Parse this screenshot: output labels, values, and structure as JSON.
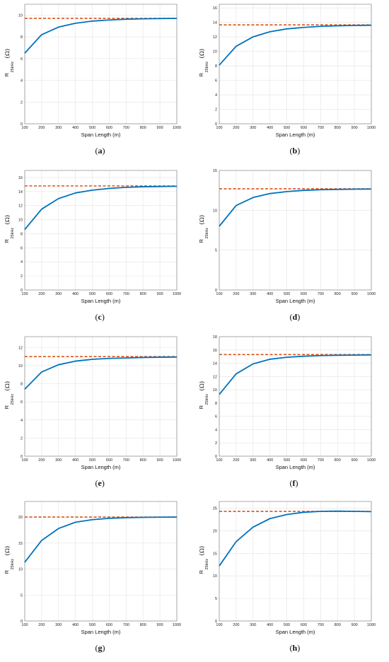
{
  "y_label": {
    "main": "R",
    "sub": "25kHz",
    "unit": "(Ω)"
  },
  "colors": {
    "series": "#0072BD",
    "asymptote": "#D95319",
    "grid": "#e3e3e3",
    "axis": "#777777"
  },
  "chart_data": [
    {
      "id": "a",
      "caption": "a",
      "type": "line",
      "xlabel": "Span Length (m)",
      "ylabel": "R 25kHz (Ω)",
      "xlim": [
        100,
        1000
      ],
      "ylim": [
        0,
        11
      ],
      "x_ticks": [
        100,
        200,
        300,
        400,
        500,
        600,
        700,
        800,
        900,
        1000
      ],
      "y_ticks": [
        0,
        2,
        4,
        6,
        8,
        10
      ],
      "x": [
        100,
        200,
        300,
        400,
        500,
        600,
        700,
        800,
        900,
        1000
      ],
      "values": [
        6.5,
        8.2,
        8.9,
        9.25,
        9.45,
        9.55,
        9.62,
        9.66,
        9.68,
        9.7
      ],
      "asymptote": 9.7
    },
    {
      "id": "b",
      "caption": "b",
      "type": "line",
      "xlabel": "Span Length (m)",
      "ylabel": "R 25kHz (Ω)",
      "xlim": [
        100,
        1000
      ],
      "ylim": [
        0,
        16.5
      ],
      "x_ticks": [
        100,
        200,
        300,
        400,
        500,
        600,
        700,
        800,
        900,
        1000
      ],
      "y_ticks": [
        0,
        2,
        4,
        6,
        8,
        10,
        12,
        14,
        16
      ],
      "x": [
        100,
        200,
        300,
        400,
        500,
        600,
        700,
        800,
        900,
        1000
      ],
      "values": [
        8.1,
        10.7,
        12.0,
        12.7,
        13.1,
        13.3,
        13.45,
        13.52,
        13.57,
        13.6
      ],
      "asymptote": 13.65
    },
    {
      "id": "c",
      "caption": "c",
      "type": "line",
      "xlabel": "Span Length (m)",
      "ylabel": "R 25kHz (Ω)",
      "xlim": [
        100,
        1000
      ],
      "ylim": [
        0,
        17
      ],
      "x_ticks": [
        100,
        200,
        300,
        400,
        500,
        600,
        700,
        800,
        900,
        1000
      ],
      "y_ticks": [
        0,
        2,
        4,
        6,
        8,
        10,
        12,
        14,
        16
      ],
      "x": [
        100,
        200,
        300,
        400,
        500,
        600,
        700,
        800,
        900,
        1000
      ],
      "values": [
        8.6,
        11.5,
        13.0,
        13.8,
        14.2,
        14.45,
        14.6,
        14.68,
        14.72,
        14.75
      ],
      "asymptote": 14.8
    },
    {
      "id": "d",
      "caption": "d",
      "type": "line",
      "xlabel": "Span Length (m)",
      "ylabel": "R 25kHz (Ω)",
      "xlim": [
        100,
        1000
      ],
      "ylim": [
        0,
        15
      ],
      "x_ticks": [
        100,
        200,
        300,
        400,
        500,
        600,
        700,
        800,
        900,
        1000
      ],
      "y_ticks": [
        0,
        5,
        10,
        15
      ],
      "x": [
        100,
        200,
        300,
        400,
        500,
        600,
        700,
        800,
        900,
        1000
      ],
      "values": [
        8.0,
        10.6,
        11.6,
        12.1,
        12.35,
        12.5,
        12.58,
        12.62,
        12.65,
        12.67
      ],
      "asymptote": 12.7
    },
    {
      "id": "e",
      "caption": "e",
      "type": "line",
      "xlabel": "Span Length (m)",
      "ylabel": "R 25kHz (Ω)",
      "xlim": [
        100,
        1000
      ],
      "ylim": [
        0,
        13.2
      ],
      "x_ticks": [
        100,
        200,
        300,
        400,
        500,
        600,
        700,
        800,
        900,
        1000
      ],
      "y_ticks": [
        0,
        2,
        4,
        6,
        8,
        10,
        12
      ],
      "x": [
        100,
        200,
        300,
        400,
        500,
        600,
        700,
        800,
        900,
        1000
      ],
      "values": [
        7.4,
        9.3,
        10.1,
        10.5,
        10.7,
        10.8,
        10.85,
        10.9,
        10.93,
        10.95
      ],
      "asymptote": 11.0
    },
    {
      "id": "f",
      "caption": "f",
      "type": "line",
      "xlabel": "Span Length (m)",
      "ylabel": "R 25kHz (Ω)",
      "xlim": [
        100,
        1000
      ],
      "ylim": [
        0,
        18
      ],
      "x_ticks": [
        100,
        200,
        300,
        400,
        500,
        600,
        700,
        800,
        900,
        1000
      ],
      "y_ticks": [
        0,
        2,
        4,
        6,
        8,
        10,
        12,
        14,
        16,
        18
      ],
      "x": [
        100,
        200,
        300,
        400,
        500,
        600,
        700,
        800,
        900,
        1000
      ],
      "values": [
        9.3,
        12.4,
        13.9,
        14.6,
        14.9,
        15.05,
        15.15,
        15.2,
        15.22,
        15.25
      ],
      "asymptote": 15.3
    },
    {
      "id": "g",
      "caption": "g",
      "type": "line",
      "xlabel": "Span Length (m)",
      "ylabel": "R 25kHz (Ω)",
      "xlim": [
        100,
        1000
      ],
      "ylim": [
        0,
        23
      ],
      "x_ticks": [
        100,
        200,
        300,
        400,
        500,
        600,
        700,
        800,
        900,
        1000
      ],
      "y_ticks": [
        0,
        5,
        10,
        15,
        20
      ],
      "x": [
        100,
        200,
        300,
        400,
        500,
        600,
        700,
        800,
        900,
        1000
      ],
      "values": [
        11.3,
        15.5,
        17.8,
        19.0,
        19.5,
        19.75,
        19.88,
        19.94,
        19.97,
        19.98
      ],
      "asymptote": 20.0
    },
    {
      "id": "h",
      "caption": "h",
      "type": "line",
      "xlabel": "Span Length (m)",
      "ylabel": "R 25kHz (Ω)",
      "xlim": [
        100,
        1000
      ],
      "ylim": [
        0,
        26.5
      ],
      "x_ticks": [
        100,
        200,
        300,
        400,
        500,
        600,
        700,
        800,
        900,
        1000
      ],
      "y_ticks": [
        0,
        5,
        10,
        15,
        20,
        25
      ],
      "x": [
        100,
        200,
        300,
        400,
        500,
        600,
        700,
        800,
        900,
        1000
      ],
      "values": [
        12.2,
        17.6,
        20.8,
        22.7,
        23.6,
        24.1,
        24.3,
        24.35,
        24.3,
        24.25
      ],
      "asymptote": 24.3
    }
  ]
}
